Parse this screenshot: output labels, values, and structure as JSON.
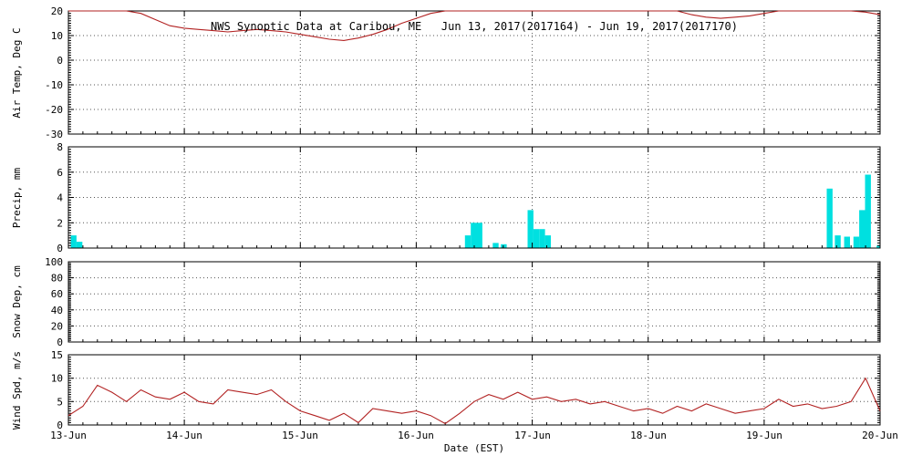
{
  "title": "NWS Synoptic Data at Caribou, ME   Jun 13, 2017(2017164) - Jun 19, 2017(2017170)",
  "xlabel": "Date (EST)",
  "x_tick_labels": [
    "13-Jun",
    "14-Jun",
    "15-Jun",
    "16-Jun",
    "17-Jun",
    "18-Jun",
    "19-Jun",
    "20-Jun"
  ],
  "x_range": [
    13,
    20
  ],
  "colors": {
    "line": "#b22222",
    "bar": "#00e0e0",
    "grid": "#555555",
    "frame": "#000000",
    "background": "#ffffff"
  },
  "chart_data": [
    {
      "type": "line",
      "name": "air-temp",
      "ylabel": "Air Temp, Deg C",
      "ylim": [
        -30,
        20
      ],
      "yticks": [
        -30,
        -20,
        -10,
        0,
        10,
        20
      ],
      "minor_step": 1,
      "x_start": 13,
      "x_step": 0.125,
      "y": [
        20.5,
        21.5,
        22,
        21.5,
        20.5,
        19,
        16.5,
        14,
        13,
        12.5,
        12,
        11.5,
        12,
        12.5,
        12,
        11.5,
        10.5,
        9.5,
        8.5,
        8,
        9,
        10.5,
        12.5,
        15,
        17,
        19,
        21,
        22,
        22.5,
        23,
        23,
        23,
        23,
        23,
        23,
        23,
        23,
        23,
        23,
        23,
        23,
        22,
        20,
        18.5,
        17.5,
        17,
        17.5,
        18,
        19,
        20.5,
        21,
        21.5,
        21,
        20.5,
        20,
        19.5,
        18.5
      ]
    },
    {
      "type": "bar",
      "name": "precip",
      "ylabel": "Precip, mm",
      "ylim": [
        0,
        8
      ],
      "yticks": [
        0,
        2,
        4,
        6,
        8
      ],
      "minor_step": 0.2,
      "bar_width": 0.05,
      "bars": [
        {
          "x": 13.02,
          "v": 1.0
        },
        {
          "x": 13.07,
          "v": 0.5
        },
        {
          "x": 16.42,
          "v": 1.0
        },
        {
          "x": 16.47,
          "v": 2.0
        },
        {
          "x": 16.52,
          "v": 2.0
        },
        {
          "x": 16.66,
          "v": 0.4
        },
        {
          "x": 16.73,
          "v": 0.3
        },
        {
          "x": 16.96,
          "v": 3.0
        },
        {
          "x": 17.01,
          "v": 1.5
        },
        {
          "x": 17.06,
          "v": 1.5
        },
        {
          "x": 17.11,
          "v": 1.0
        },
        {
          "x": 19.54,
          "v": 4.7
        },
        {
          "x": 19.61,
          "v": 1.0
        },
        {
          "x": 19.69,
          "v": 0.9
        },
        {
          "x": 19.77,
          "v": 0.9
        },
        {
          "x": 19.82,
          "v": 3.0
        },
        {
          "x": 19.87,
          "v": 5.8
        },
        {
          "x": 19.97,
          "v": 0.2
        }
      ]
    },
    {
      "type": "none",
      "name": "snow-depth",
      "ylabel": "Snow Dep, cm",
      "ylim": [
        0,
        100
      ],
      "yticks": [
        0,
        20,
        40,
        60,
        80,
        100
      ],
      "minor_step": 2,
      "y": []
    },
    {
      "type": "line",
      "name": "wind-speed",
      "ylabel": "Wind Spd, m/s",
      "ylim": [
        0,
        15
      ],
      "yticks": [
        0,
        5,
        10,
        15
      ],
      "minor_step": 0.5,
      "x_start": 13,
      "x_step": 0.125,
      "y": [
        2,
        4,
        8.5,
        7,
        5,
        7.5,
        6,
        5.5,
        7,
        5,
        4.5,
        7.5,
        7,
        6.5,
        7.5,
        5,
        3,
        2,
        1,
        2.5,
        0.5,
        3.5,
        3,
        2.5,
        3,
        2,
        0.3,
        2.5,
        5,
        6.5,
        5.5,
        7,
        5.5,
        6,
        5,
        5.5,
        4.5,
        5,
        4,
        3,
        3.5,
        2.5,
        4,
        3,
        4.5,
        3.5,
        2.5,
        3,
        3.5,
        5.5,
        4,
        4.5,
        3.5,
        4,
        5,
        10,
        3
      ]
    }
  ]
}
